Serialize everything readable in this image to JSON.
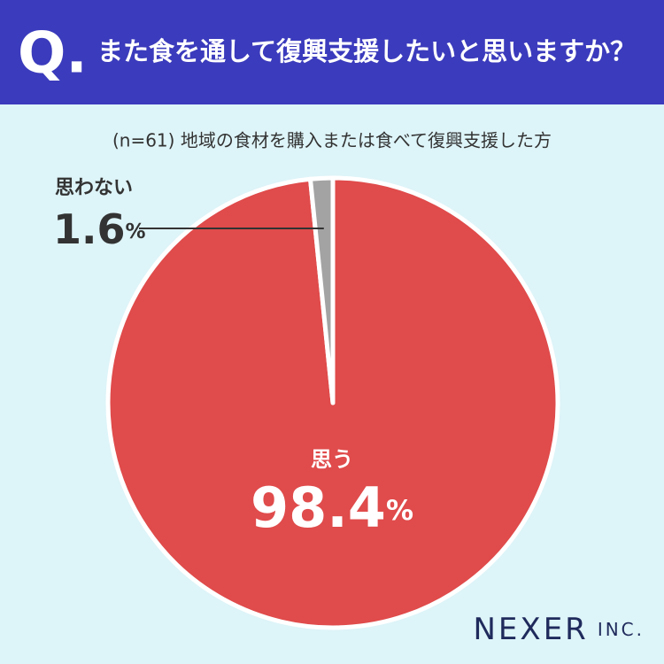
{
  "chart_data": {
    "type": "pie",
    "question_mark": "Q.",
    "title": "また食を通して復興支援したいと思いますか？",
    "subtitle": "(n=61) 地域の食材を購入または食べて復興支援した方",
    "categories": [
      "思う",
      "思わない"
    ],
    "values": [
      98.4,
      1.6
    ],
    "value_labels": [
      "98.4%",
      "1.6%"
    ],
    "colors": [
      "#e04b4b",
      "#a3a3a3"
    ]
  },
  "brand": {
    "name": "NEXER",
    "suffix": "INC."
  }
}
